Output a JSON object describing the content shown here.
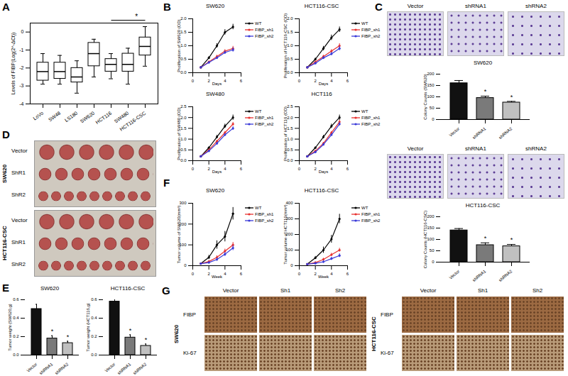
{
  "chart_data": [
    {
      "panel": "A",
      "type": "box",
      "y_label": "Levels of FIBP(Log(2^-ΔCt))",
      "categories": [
        "LoVo",
        "SW48",
        "LS180",
        "SW620",
        "HCT116",
        "SW480",
        "HCT116-CSC"
      ],
      "min": [
        -2.9,
        -2.9,
        -3.4,
        -2.5,
        -2.6,
        -2.9,
        -1.9
      ],
      "q1": [
        -2.7,
        -2.6,
        -2.8,
        -1.9,
        -2.2,
        -2.2,
        -1.3
      ],
      "median": [
        -2.2,
        -2.2,
        -2.5,
        -1.2,
        -1.8,
        -1.8,
        -0.8
      ],
      "q3": [
        -1.7,
        -1.7,
        -2.0,
        -0.6,
        -1.5,
        -1.2,
        -0.3
      ],
      "max": [
        -1.2,
        -1.3,
        -1.6,
        -0.4,
        -1.2,
        -0.9,
        0.3
      ],
      "ylim": [
        -4,
        0.5
      ],
      "yticks": [
        -4,
        -3,
        -2,
        -1,
        0
      ],
      "color": "#ffffff",
      "annotations": [
        {
          "text": "*",
          "from": "HCT116",
          "to": "HCT116-CSC"
        }
      ]
    },
    {
      "panel": "B",
      "type": "line",
      "title": "SW620",
      "x_label": "Days",
      "y_label": "Proliferation of SW620 (OD)",
      "x": [
        1,
        2,
        3,
        4,
        5
      ],
      "xlim": [
        0,
        6
      ],
      "xticks": [
        0,
        2,
        4,
        6
      ],
      "ylim": [
        0,
        2
      ],
      "yticks": [
        {
          "value": 0,
          "label": "0.0"
        },
        0.5,
        {
          "value": 1,
          "label": "1.0"
        },
        1.5,
        {
          "value": 2,
          "label": "2.0"
        }
      ],
      "legend": "right",
      "series": [
        {
          "name": "WT",
          "color": "#000000",
          "values": [
            0.2,
            0.55,
            1.0,
            1.5,
            1.7
          ],
          "errors": [
            0.02,
            0.05,
            0.08,
            0.1,
            0.1
          ]
        },
        {
          "name": "FIBP_sh1",
          "color": "#e8312f",
          "values": [
            0.2,
            0.4,
            0.6,
            0.8,
            0.9
          ],
          "errors": [
            0.02,
            0.04,
            0.05,
            0.06,
            0.08
          ]
        },
        {
          "name": "FIBP_sh2",
          "color": "#3a3ad8",
          "values": [
            0.2,
            0.38,
            0.55,
            0.75,
            0.85
          ],
          "errors": [
            0.02,
            0.04,
            0.05,
            0.06,
            0.08
          ]
        }
      ]
    },
    {
      "type": "line",
      "title": "HCT116-CSC",
      "x_label": "Days",
      "y_label": "Proliferation of HCT116-CSC (OD)",
      "x": [
        1,
        2,
        3,
        4,
        5
      ],
      "xlim": [
        0,
        6
      ],
      "xticks": [
        0,
        2,
        4,
        6
      ],
      "ylim": [
        0,
        2
      ],
      "yticks": [
        {
          "value": 0,
          "label": "0.0"
        },
        0.5,
        {
          "value": 1,
          "label": "1.0"
        },
        1.5,
        {
          "value": 2,
          "label": "2.0"
        }
      ],
      "legend": "right",
      "series": [
        {
          "name": "WT",
          "color": "#000000",
          "values": [
            0.2,
            0.5,
            0.9,
            1.3,
            1.6
          ],
          "errors": [
            0.02,
            0.05,
            0.08,
            0.1,
            0.1
          ]
        },
        {
          "name": "FIBP_sh1",
          "color": "#e8312f",
          "values": [
            0.2,
            0.4,
            0.6,
            0.8,
            1.0
          ],
          "errors": [
            0.02,
            0.04,
            0.05,
            0.06,
            0.08
          ]
        },
        {
          "name": "FIBP_sh2",
          "color": "#3a3ad8",
          "values": [
            0.2,
            0.35,
            0.55,
            0.7,
            0.9
          ],
          "errors": [
            0.02,
            0.04,
            0.05,
            0.06,
            0.08
          ]
        }
      ]
    },
    {
      "type": "line",
      "title": "SW480",
      "x_label": "Days",
      "y_label": "Proliferation of SW480 (OD)",
      "x": [
        1,
        2,
        3,
        4,
        5
      ],
      "xlim": [
        0,
        6
      ],
      "xticks": [
        0,
        2,
        4,
        6
      ],
      "ylim": [
        0,
        2.5
      ],
      "yticks": [
        {
          "value": 0,
          "label": "0.0"
        },
        0.5,
        {
          "value": 1,
          "label": "1.0"
        },
        1.5,
        {
          "value": 2,
          "label": "2.0"
        },
        2.5
      ],
      "legend": "right",
      "series": [
        {
          "name": "WT",
          "color": "#000000",
          "values": [
            0.2,
            0.6,
            1.1,
            1.6,
            2.0
          ],
          "errors": [
            0.02,
            0.05,
            0.08,
            0.1,
            0.12
          ]
        },
        {
          "name": "FIBP_sh1",
          "color": "#e8312f",
          "values": [
            0.2,
            0.5,
            0.9,
            1.3,
            1.7
          ],
          "errors": [
            0.02,
            0.04,
            0.05,
            0.06,
            0.08
          ]
        },
        {
          "name": "FIBP_sh2",
          "color": "#3a3ad8",
          "values": [
            0.2,
            0.45,
            0.8,
            1.2,
            1.5
          ],
          "errors": [
            0.02,
            0.04,
            0.05,
            0.06,
            0.08
          ]
        }
      ]
    },
    {
      "type": "line",
      "title": "HCT116",
      "x_label": "Days",
      "y_label": "Proliferation of HCT116 (OD)",
      "x": [
        1,
        2,
        3,
        4,
        5
      ],
      "xlim": [
        0,
        6
      ],
      "xticks": [
        0,
        2,
        4,
        6
      ],
      "ylim": [
        0,
        2.5
      ],
      "yticks": [
        {
          "value": 0,
          "label": "0.0"
        },
        0.5,
        {
          "value": 1,
          "label": "1.0"
        },
        1.5,
        {
          "value": 2,
          "label": "2.0"
        },
        2.5
      ],
      "legend": "right",
      "series": [
        {
          "name": "WT",
          "color": "#000000",
          "values": [
            0.2,
            0.6,
            1.1,
            1.6,
            2.0
          ],
          "errors": [
            0.02,
            0.05,
            0.08,
            0.1,
            0.12
          ]
        },
        {
          "name": "FIBP_sh1",
          "color": "#e8312f",
          "values": [
            0.2,
            0.45,
            0.8,
            1.3,
            1.8
          ],
          "errors": [
            0.02,
            0.04,
            0.05,
            0.06,
            0.08
          ]
        },
        {
          "name": "FIBP_sh2",
          "color": "#3a3ad8",
          "values": [
            0.2,
            0.4,
            0.75,
            1.2,
            1.7
          ],
          "errors": [
            0.02,
            0.04,
            0.05,
            0.06,
            0.08
          ]
        }
      ]
    },
    {
      "panel": "C",
      "type": "bar",
      "title": "SW620",
      "y_label": "Colony Counts (SW620)",
      "categories": [
        "Vector",
        "shRNA1",
        "shRNA2"
      ],
      "values": [
        160,
        95,
        75
      ],
      "errors": [
        12,
        8,
        5
      ],
      "significance": [
        null,
        "*",
        "*"
      ],
      "colors": [
        "#111111",
        "#7a7a7a",
        "#c0c0c0"
      ],
      "ylim": [
        0,
        200
      ],
      "yticks": [
        0,
        50,
        100,
        150,
        200
      ]
    },
    {
      "type": "bar",
      "title": "HCT116-CSC",
      "y_label": "Colony Counts (HCT116-CSC)",
      "categories": [
        "Vector",
        "shRNA1",
        "shRNA2"
      ],
      "values": [
        140,
        75,
        70
      ],
      "errors": [
        8,
        10,
        8
      ],
      "significance": [
        null,
        "*",
        "*"
      ],
      "colors": [
        "#111111",
        "#7a7a7a",
        "#c0c0c0"
      ],
      "ylim": [
        0,
        200
      ],
      "yticks": [
        0,
        50,
        100,
        150,
        200
      ]
    },
    {
      "panel": "E",
      "type": "bar",
      "title": "SW620",
      "y_label": "Tumor weight (SW620,g)",
      "categories": [
        "Vector",
        "shRNA1",
        "shRNA2"
      ],
      "values": [
        0.5,
        0.18,
        0.13
      ],
      "errors": [
        0.05,
        0.03,
        0.02
      ],
      "significance": [
        null,
        "*",
        "*"
      ],
      "colors": [
        "#111111",
        "#7a7a7a",
        "#c0c0c0"
      ],
      "ylim": [
        0,
        0.6
      ],
      "yticks": [
        {
          "value": 0,
          "label": "0.0"
        },
        0.2,
        0.4,
        0.6
      ]
    },
    {
      "type": "bar",
      "title": "HCT116-CSC",
      "y_label": "Tumor weight (HCT116,g)",
      "categories": [
        "Vector",
        "shRNA1",
        "shRNA2"
      ],
      "values": [
        0.58,
        0.19,
        0.1
      ],
      "errors": [
        0.05,
        0.03,
        0.02
      ],
      "significance": [
        null,
        "*",
        "*"
      ],
      "colors": [
        "#111111",
        "#7a7a7a",
        "#c0c0c0"
      ],
      "ylim": [
        0,
        0.6
      ],
      "yticks": [
        {
          "value": 0,
          "label": "0.0"
        },
        0.2,
        0.4,
        0.6
      ]
    },
    {
      "panel": "F",
      "type": "line",
      "title": "SW620",
      "x_label": "Week",
      "y_label": "Tumor volume of SW620(mm³)",
      "x": [
        1,
        2,
        3,
        4,
        5
      ],
      "xlim": [
        0,
        6
      ],
      "xticks": [
        0,
        2,
        4,
        6
      ],
      "ylim": [
        0,
        300
      ],
      "yticks": [
        0,
        100,
        200,
        300
      ],
      "legend": "right",
      "series": [
        {
          "name": "WT",
          "color": "#000000",
          "values": [
            10,
            40,
            100,
            140,
            250
          ],
          "errors": [
            3,
            10,
            20,
            25,
            30
          ]
        },
        {
          "name": "FIBP_sh1",
          "color": "#e8312f",
          "values": [
            10,
            20,
            40,
            70,
            100
          ],
          "errors": [
            3,
            5,
            8,
            10,
            12
          ]
        },
        {
          "name": "FIBP_sh2",
          "color": "#3a3ad8",
          "values": [
            10,
            15,
            30,
            55,
            85
          ],
          "errors": [
            3,
            5,
            8,
            10,
            12
          ]
        }
      ]
    },
    {
      "type": "line",
      "title": "HCT116-CSC",
      "x_label": "Week",
      "y_label": "Tumor volume of HCT116(mm³)",
      "x": [
        1,
        2,
        3,
        4,
        5
      ],
      "xlim": [
        0,
        6
      ],
      "xticks": [
        0,
        2,
        4,
        6
      ],
      "ylim": [
        0,
        400
      ],
      "yticks": [
        0,
        100,
        200,
        300,
        400
      ],
      "legend": "right",
      "series": [
        {
          "name": "WT",
          "color": "#000000",
          "values": [
            10,
            50,
            100,
            170,
            300
          ],
          "errors": [
            3,
            10,
            20,
            25,
            30
          ]
        },
        {
          "name": "FIBP_sh1",
          "color": "#e8312f",
          "values": [
            10,
            20,
            40,
            70,
            100
          ],
          "errors": [
            3,
            5,
            8,
            10,
            12
          ]
        },
        {
          "name": "FIBP_sh2",
          "color": "#3a3ad8",
          "values": [
            10,
            15,
            25,
            45,
            65
          ],
          "errors": [
            3,
            5,
            8,
            10,
            12
          ]
        }
      ]
    }
  ],
  "images": {
    "colony": {
      "columns": [
        "Vector",
        "shRNA1",
        "shRNA2"
      ]
    },
    "tumors": {
      "panel": "D",
      "rows": [
        "SW620",
        "HCT116-CSC"
      ],
      "sub_rows": [
        "Vector",
        "ShR1",
        "ShR2"
      ]
    },
    "ihc": {
      "panel": "G",
      "groups": [
        "SW620",
        "HCT116-CSC"
      ],
      "columns": [
        "Vector",
        "Sh1",
        "Sh2"
      ],
      "rows": [
        "FIBP",
        "Ki-67"
      ]
    }
  }
}
